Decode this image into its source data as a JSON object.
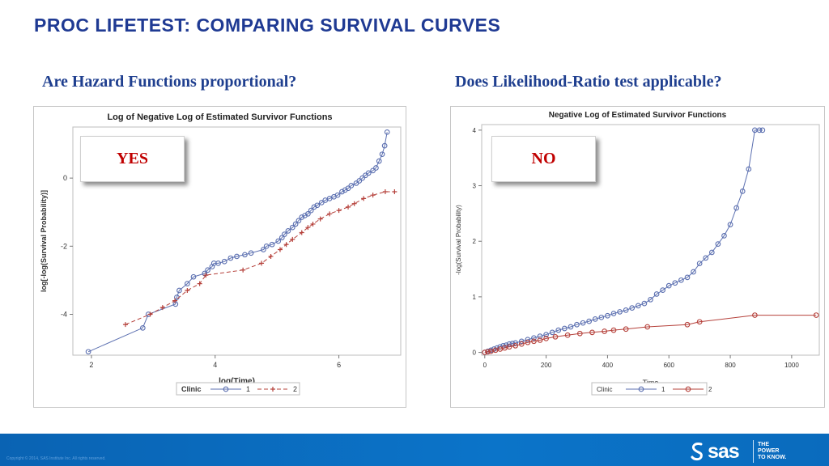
{
  "slide": {
    "title": "PROC LIFETEST:  COMPARING SURVIVAL CURVES",
    "left_subtitle": "Are Hazard Functions proportional?",
    "right_subtitle": "Does Likelihood-Ratio test applicable?",
    "left_badge": "YES",
    "right_badge": "NO",
    "badge_color": "#c00000",
    "title_color": "#1f3a93"
  },
  "footer": {
    "copyright": "Copyright © 2014, SAS Institute Inc. All rights reserved.",
    "logo_text": "sas",
    "tagline_1": "THE",
    "tagline_2": "POWER",
    "tagline_3": "TO KNOW.",
    "background": "#0b6fc2"
  },
  "chart_data": [
    {
      "type": "line",
      "title": "Log of Negative Log of Estimated Survivor Functions",
      "xlabel": "log(Time)",
      "ylabel": "log[-log(Survival Probability)]",
      "xlim": [
        1.7,
        7.0
      ],
      "ylim": [
        -5.2,
        1.5
      ],
      "xticks": [
        2,
        4,
        6
      ],
      "yticks": [
        0,
        -2,
        -4
      ],
      "grid": false,
      "legend": {
        "title": "Clinic",
        "placement": "bottom"
      },
      "series": [
        {
          "name": "1",
          "color": "#5b6fb0",
          "marker": "circle",
          "line": "solid",
          "x": [
            1.95,
            2.83,
            2.92,
            3.36,
            3.38,
            3.42,
            3.55,
            3.65,
            3.83,
            3.88,
            3.95,
            3.98,
            4.05,
            4.15,
            4.25,
            4.35,
            4.48,
            4.58,
            4.78,
            4.83,
            4.92,
            5.02,
            5.08,
            5.12,
            5.18,
            5.25,
            5.3,
            5.35,
            5.4,
            5.45,
            5.5,
            5.55,
            5.6,
            5.65,
            5.72,
            5.78,
            5.85,
            5.92,
            5.98,
            6.05,
            6.1,
            6.15,
            6.2,
            6.28,
            6.33,
            6.38,
            6.43,
            6.48,
            6.55,
            6.6,
            6.65,
            6.7,
            6.74,
            6.78
          ],
          "y": [
            -5.1,
            -4.4,
            -4.0,
            -3.7,
            -3.5,
            -3.3,
            -3.1,
            -2.9,
            -2.8,
            -2.7,
            -2.6,
            -2.5,
            -2.5,
            -2.45,
            -2.35,
            -2.3,
            -2.25,
            -2.2,
            -2.1,
            -2.0,
            -1.95,
            -1.85,
            -1.75,
            -1.65,
            -1.55,
            -1.45,
            -1.35,
            -1.25,
            -1.15,
            -1.1,
            -1.05,
            -0.95,
            -0.85,
            -0.8,
            -0.72,
            -0.65,
            -0.6,
            -0.55,
            -0.5,
            -0.4,
            -0.35,
            -0.3,
            -0.22,
            -0.15,
            -0.08,
            0.0,
            0.08,
            0.15,
            0.22,
            0.3,
            0.5,
            0.7,
            0.95,
            1.35
          ]
        },
        {
          "name": "2",
          "color": "#b5403a",
          "marker": "plus",
          "line": "dashed",
          "x": [
            2.55,
            2.95,
            3.15,
            3.35,
            3.55,
            3.75,
            3.85,
            4.45,
            4.75,
            4.9,
            5.05,
            5.15,
            5.25,
            5.4,
            5.5,
            5.58,
            5.7,
            5.85,
            6.0,
            6.15,
            6.25,
            6.4,
            6.55,
            6.75,
            6.9
          ],
          "y": [
            -4.3,
            -4.0,
            -3.8,
            -3.6,
            -3.3,
            -3.1,
            -2.85,
            -2.7,
            -2.5,
            -2.3,
            -2.1,
            -1.95,
            -1.8,
            -1.6,
            -1.45,
            -1.35,
            -1.2,
            -1.05,
            -0.95,
            -0.85,
            -0.75,
            -0.6,
            -0.5,
            -0.4,
            -0.4
          ]
        }
      ]
    },
    {
      "type": "line",
      "title": "Negative Log of Estimated Survivor Functions",
      "xlabel": "Time",
      "ylabel": "-log(Survival Probability)",
      "xlim": [
        -10,
        1090
      ],
      "ylim": [
        -0.05,
        4.1
      ],
      "xticks": [
        0,
        200,
        400,
        600,
        800,
        1000
      ],
      "yticks": [
        0,
        1,
        2,
        3,
        4
      ],
      "grid": false,
      "legend": {
        "title": "Clinic",
        "placement": "bottom"
      },
      "series": [
        {
          "name": "1",
          "color": "#5b6fb0",
          "marker": "circle",
          "line": "solid",
          "x": [
            0,
            10,
            20,
            30,
            40,
            50,
            60,
            70,
            80,
            90,
            100,
            120,
            140,
            160,
            180,
            200,
            220,
            240,
            260,
            280,
            300,
            320,
            340,
            360,
            380,
            400,
            420,
            440,
            460,
            480,
            500,
            520,
            540,
            560,
            580,
            600,
            620,
            640,
            660,
            680,
            700,
            720,
            740,
            760,
            780,
            800,
            820,
            840,
            860,
            880,
            895,
            905
          ],
          "y": [
            0.0,
            0.02,
            0.04,
            0.06,
            0.08,
            0.1,
            0.12,
            0.13,
            0.15,
            0.16,
            0.17,
            0.2,
            0.23,
            0.26,
            0.29,
            0.32,
            0.36,
            0.4,
            0.43,
            0.46,
            0.5,
            0.53,
            0.56,
            0.6,
            0.63,
            0.66,
            0.7,
            0.73,
            0.76,
            0.8,
            0.84,
            0.88,
            0.95,
            1.05,
            1.12,
            1.2,
            1.25,
            1.3,
            1.35,
            1.45,
            1.6,
            1.7,
            1.8,
            1.95,
            2.1,
            2.3,
            2.6,
            2.9,
            3.3,
            4.0,
            4.0,
            4.0
          ]
        },
        {
          "name": "2",
          "color": "#b5403a",
          "marker": "circle",
          "line": "solid",
          "x": [
            0,
            10,
            20,
            35,
            50,
            65,
            80,
            100,
            120,
            140,
            160,
            180,
            200,
            230,
            270,
            310,
            350,
            390,
            420,
            460,
            530,
            660,
            700,
            880,
            1080
          ],
          "y": [
            0.0,
            0.01,
            0.02,
            0.04,
            0.06,
            0.08,
            0.1,
            0.12,
            0.15,
            0.18,
            0.2,
            0.22,
            0.25,
            0.28,
            0.31,
            0.34,
            0.36,
            0.38,
            0.4,
            0.42,
            0.46,
            0.5,
            0.55,
            0.67,
            0.67
          ]
        }
      ]
    }
  ]
}
